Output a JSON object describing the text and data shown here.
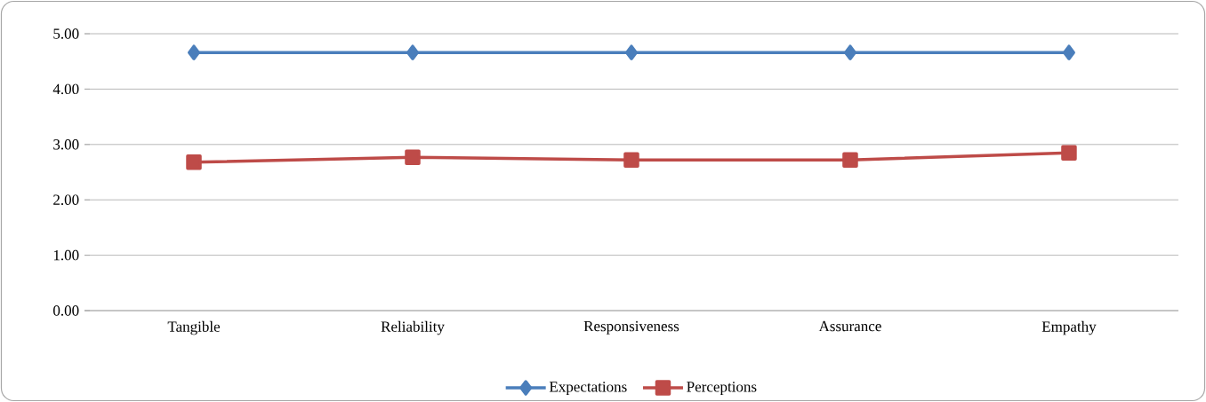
{
  "chart_data": {
    "type": "line",
    "categories": [
      "Tangible",
      "Reliability",
      "Responsiveness",
      "Assurance",
      "Empathy"
    ],
    "series": [
      {
        "name": "Expectations",
        "color": "#4a7ebb",
        "marker": "diamond",
        "values": [
          4.66,
          4.66,
          4.66,
          4.66,
          4.66
        ]
      },
      {
        "name": "Perceptions",
        "color": "#be4b48",
        "marker": "square",
        "values": [
          2.68,
          2.77,
          2.72,
          2.72,
          2.85
        ]
      }
    ],
    "ylim": [
      0,
      5
    ],
    "yticks": [
      {
        "value": 0,
        "label": "0.00"
      },
      {
        "value": 1,
        "label": "1.00"
      },
      {
        "value": 2,
        "label": "2.00"
      },
      {
        "value": 3,
        "label": "3.00"
      },
      {
        "value": 4,
        "label": "4.00"
      },
      {
        "value": 5,
        "label": "5.00"
      }
    ],
    "grid": "y",
    "legend": "bottom",
    "line_style": "solid"
  }
}
